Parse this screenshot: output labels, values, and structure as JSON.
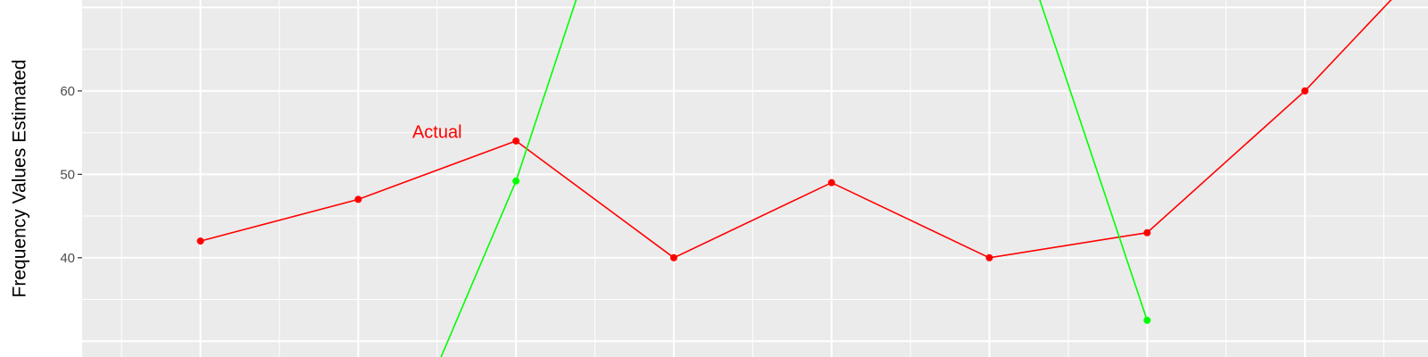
{
  "chart_data": {
    "type": "line",
    "ylabel": "Frequency Values Estimated",
    "xlabel": "",
    "title": "",
    "x": [
      1,
      2,
      3,
      4,
      5,
      6,
      7,
      8
    ],
    "y_ticks": [
      40,
      50,
      60
    ],
    "ylim": [
      28.1,
      70.9
    ],
    "xlim": [
      0.25,
      8.78
    ],
    "grid": true,
    "annotations": [
      {
        "text": "Actual",
        "x": 2.5,
        "y": 55.1,
        "color": "#ff0000"
      }
    ],
    "series": [
      {
        "color": "#ff0000",
        "x": [
          1,
          2,
          3,
          4,
          5,
          6,
          7,
          8,
          8.6
        ],
        "values": [
          42,
          47,
          54,
          40,
          49,
          40,
          43,
          60,
          72
        ]
      },
      {
        "color": "#00ff00",
        "x": [
          2.5,
          3,
          3.4,
          6.3,
          7
        ],
        "values": [
          27,
          49.2,
          72,
          72,
          32.5
        ]
      }
    ]
  }
}
